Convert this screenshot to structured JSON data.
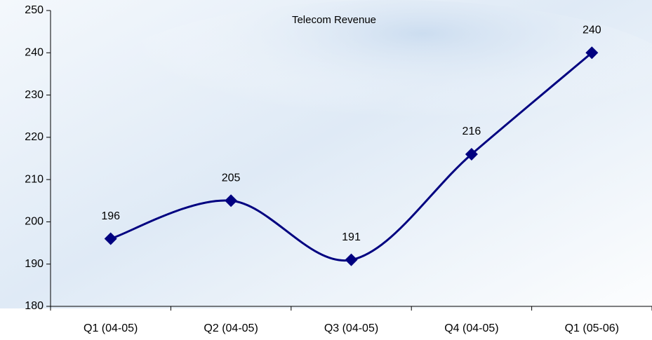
{
  "chart_data": {
    "type": "line",
    "title": "Telecom Revenue",
    "categories": [
      "Q1 (04-05)",
      "Q2 (04-05)",
      "Q3 (04-05)",
      "Q4 (04-05)",
      "Q1 (05-06)"
    ],
    "values": [
      196,
      205,
      191,
      216,
      240
    ],
    "color": "#000080",
    "smooth": true,
    "ylim": [
      180,
      250
    ],
    "yticks": [
      180,
      190,
      200,
      210,
      220,
      230,
      240,
      250
    ],
    "grid": false
  }
}
